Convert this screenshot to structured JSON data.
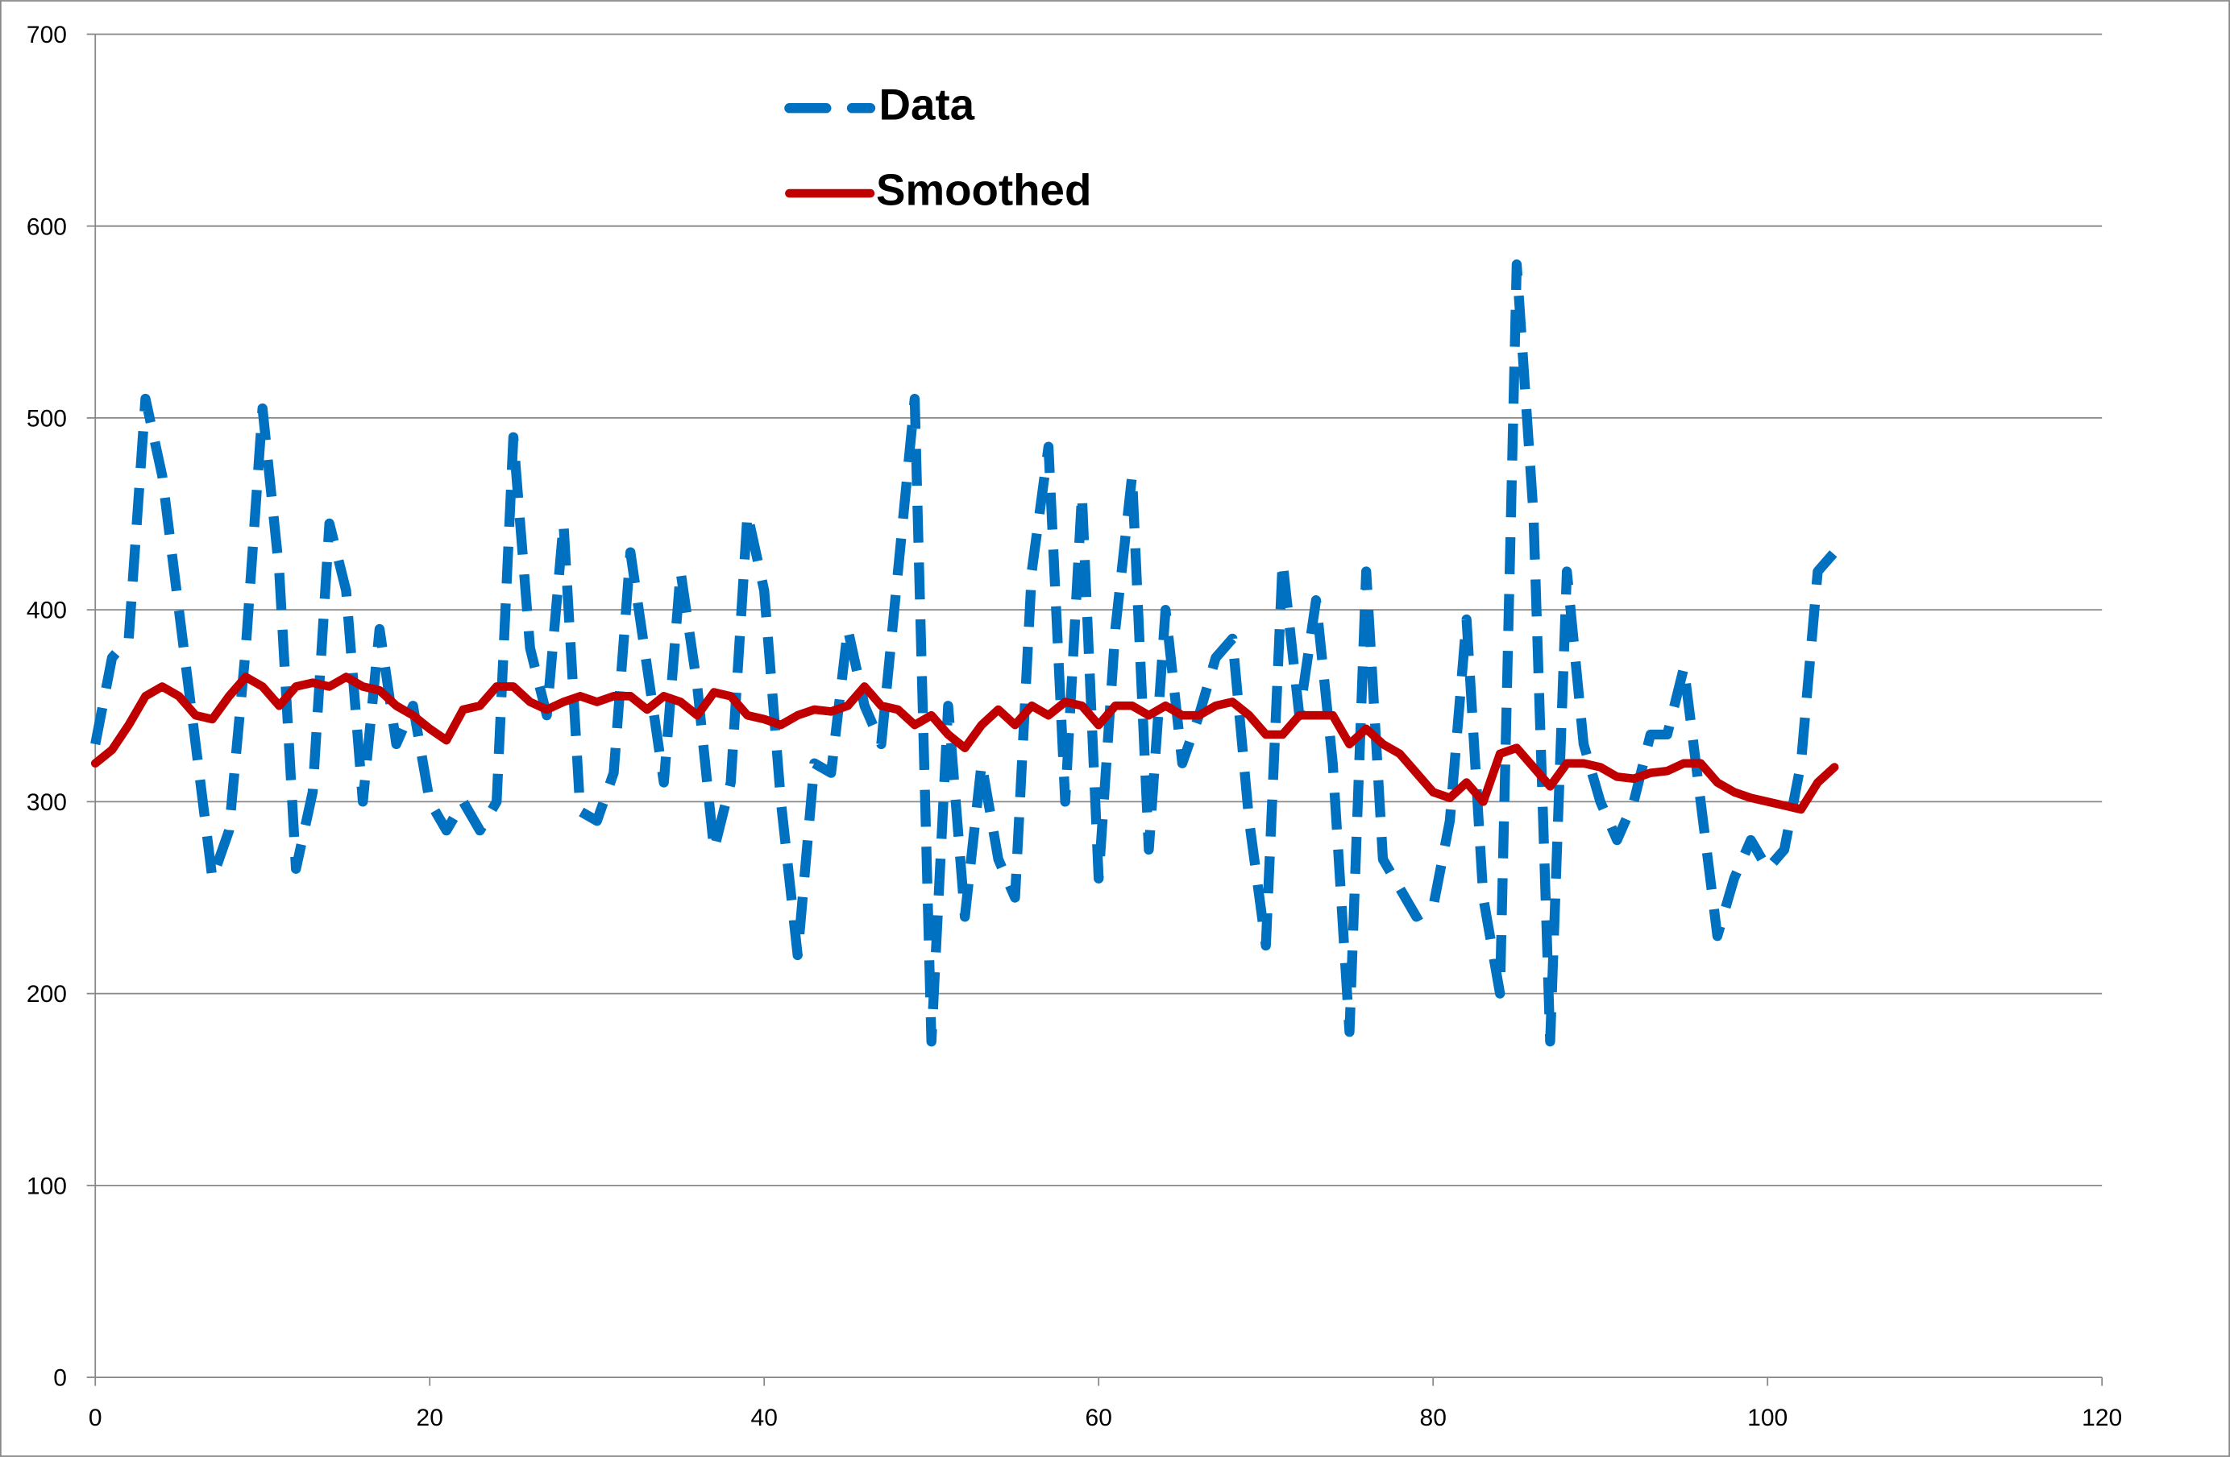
{
  "chart_data": {
    "type": "line",
    "x": [
      0,
      1,
      2,
      3,
      4,
      5,
      6,
      7,
      8,
      9,
      10,
      11,
      12,
      13,
      14,
      15,
      16,
      17,
      18,
      19,
      20,
      21,
      22,
      23,
      24,
      25,
      26,
      27,
      28,
      29,
      30,
      31,
      32,
      33,
      34,
      35,
      36,
      37,
      38,
      39,
      40,
      41,
      42,
      43,
      44,
      45,
      46,
      47,
      48,
      49,
      50,
      51,
      52,
      53,
      54,
      55,
      56,
      57,
      58,
      59,
      60,
      61,
      62,
      63,
      64,
      65,
      66,
      67,
      68,
      69,
      70,
      71,
      72,
      73,
      74,
      75,
      76,
      77,
      78,
      79,
      80,
      81,
      82,
      83,
      84,
      85,
      86,
      87,
      88,
      89,
      90,
      91,
      92,
      93,
      94,
      95,
      96,
      97,
      98,
      99,
      100,
      101,
      102,
      103,
      104
    ],
    "series": [
      {
        "name": "Data",
        "color": "#0070c0",
        "dashed": true,
        "values": [
          330,
          375,
          385,
          510,
          470,
          400,
          330,
          260,
          285,
          380,
          505,
          420,
          265,
          305,
          445,
          410,
          300,
          390,
          330,
          350,
          300,
          285,
          300,
          285,
          300,
          490,
          380,
          345,
          445,
          295,
          290,
          315,
          430,
          370,
          310,
          420,
          360,
          275,
          310,
          450,
          410,
          300,
          220,
          320,
          315,
          390,
          350,
          330,
          420,
          510,
          175,
          350,
          240,
          320,
          270,
          250,
          420,
          485,
          300,
          460,
          260,
          390,
          470,
          275,
          400,
          320,
          345,
          375,
          385,
          290,
          225,
          425,
          345,
          405,
          320,
          180,
          420,
          270,
          255,
          240,
          245,
          290,
          395,
          250,
          200,
          580,
          450,
          175,
          420,
          330,
          300,
          280,
          300,
          335,
          335,
          370,
          300,
          230,
          260,
          280,
          265,
          275,
          320,
          420,
          430
        ]
      },
      {
        "name": "Smoothed",
        "color": "#c00000",
        "dashed": false,
        "values": [
          320,
          327,
          340,
          355,
          360,
          355,
          345,
          343,
          355,
          365,
          360,
          350,
          360,
          362,
          360,
          365,
          360,
          358,
          350,
          345,
          338,
          332,
          348,
          350,
          360,
          360,
          352,
          348,
          352,
          355,
          352,
          355,
          355,
          348,
          355,
          352,
          345,
          357,
          355,
          345,
          343,
          340,
          345,
          348,
          347,
          350,
          360,
          350,
          348,
          340,
          345,
          335,
          328,
          340,
          348,
          340,
          350,
          345,
          352,
          350,
          340,
          350,
          350,
          345,
          350,
          345,
          345,
          350,
          352,
          345,
          335,
          335,
          345,
          345,
          345,
          330,
          338,
          330,
          325,
          315,
          305,
          302,
          310,
          300,
          325,
          328,
          318,
          308,
          320,
          320,
          318,
          313,
          312,
          315,
          316,
          320,
          320,
          310,
          305,
          302,
          300,
          298,
          296,
          310,
          318
        ]
      }
    ],
    "xlim": [
      0,
      120
    ],
    "xticks": [
      0,
      20,
      40,
      60,
      80,
      100,
      120
    ],
    "ylim": [
      0,
      700
    ],
    "yticks": [
      0,
      100,
      200,
      300,
      400,
      500,
      600,
      700
    ],
    "grid": true
  }
}
